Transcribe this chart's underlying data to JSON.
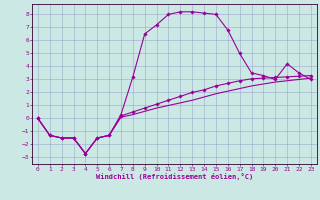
{
  "xlabel": "Windchill (Refroidissement éolien,°C)",
  "bg_color": "#cce8e4",
  "grid_color": "#99aacc",
  "line_color": "#990099",
  "spine_color": "#330033",
  "xlim": [
    -0.5,
    23.5
  ],
  "ylim": [
    -3.5,
    8.8
  ],
  "yticks": [
    -3,
    -2,
    -1,
    0,
    1,
    2,
    3,
    4,
    5,
    6,
    7,
    8
  ],
  "xticks": [
    0,
    1,
    2,
    3,
    4,
    5,
    6,
    7,
    8,
    9,
    10,
    11,
    12,
    13,
    14,
    15,
    16,
    17,
    18,
    19,
    20,
    21,
    22,
    23
  ],
  "line1_x": [
    0,
    1,
    2,
    3,
    4,
    5,
    6,
    7,
    8,
    9,
    10,
    11,
    12,
    13,
    14,
    15,
    16,
    17,
    18,
    19,
    20,
    21,
    22,
    23
  ],
  "line1_y": [
    0.0,
    -1.3,
    -1.5,
    -1.5,
    -2.7,
    -1.5,
    -1.3,
    0.3,
    3.2,
    6.5,
    7.2,
    8.0,
    8.2,
    8.2,
    8.1,
    8.0,
    6.8,
    5.0,
    3.5,
    3.3,
    3.0,
    4.2,
    3.5,
    3.0
  ],
  "line2_x": [
    0,
    1,
    2,
    3,
    4,
    5,
    6,
    7,
    8,
    9,
    10,
    11,
    12,
    13,
    14,
    15,
    16,
    17,
    18,
    19,
    20,
    21,
    22,
    23
  ],
  "line2_y": [
    0.0,
    -1.3,
    -1.5,
    -1.5,
    -2.7,
    -1.5,
    -1.3,
    0.2,
    0.5,
    0.8,
    1.1,
    1.4,
    1.7,
    2.0,
    2.2,
    2.5,
    2.7,
    2.9,
    3.05,
    3.1,
    3.15,
    3.2,
    3.25,
    3.3
  ],
  "line3_x": [
    0,
    1,
    2,
    3,
    4,
    5,
    6,
    7,
    8,
    9,
    10,
    11,
    12,
    13,
    14,
    15,
    16,
    17,
    18,
    19,
    20,
    21,
    22,
    23
  ],
  "line3_y": [
    0.0,
    -1.3,
    -1.5,
    -1.5,
    -2.7,
    -1.5,
    -1.3,
    0.1,
    0.3,
    0.55,
    0.8,
    1.0,
    1.2,
    1.4,
    1.65,
    1.9,
    2.1,
    2.3,
    2.5,
    2.65,
    2.8,
    2.9,
    3.0,
    3.1
  ]
}
